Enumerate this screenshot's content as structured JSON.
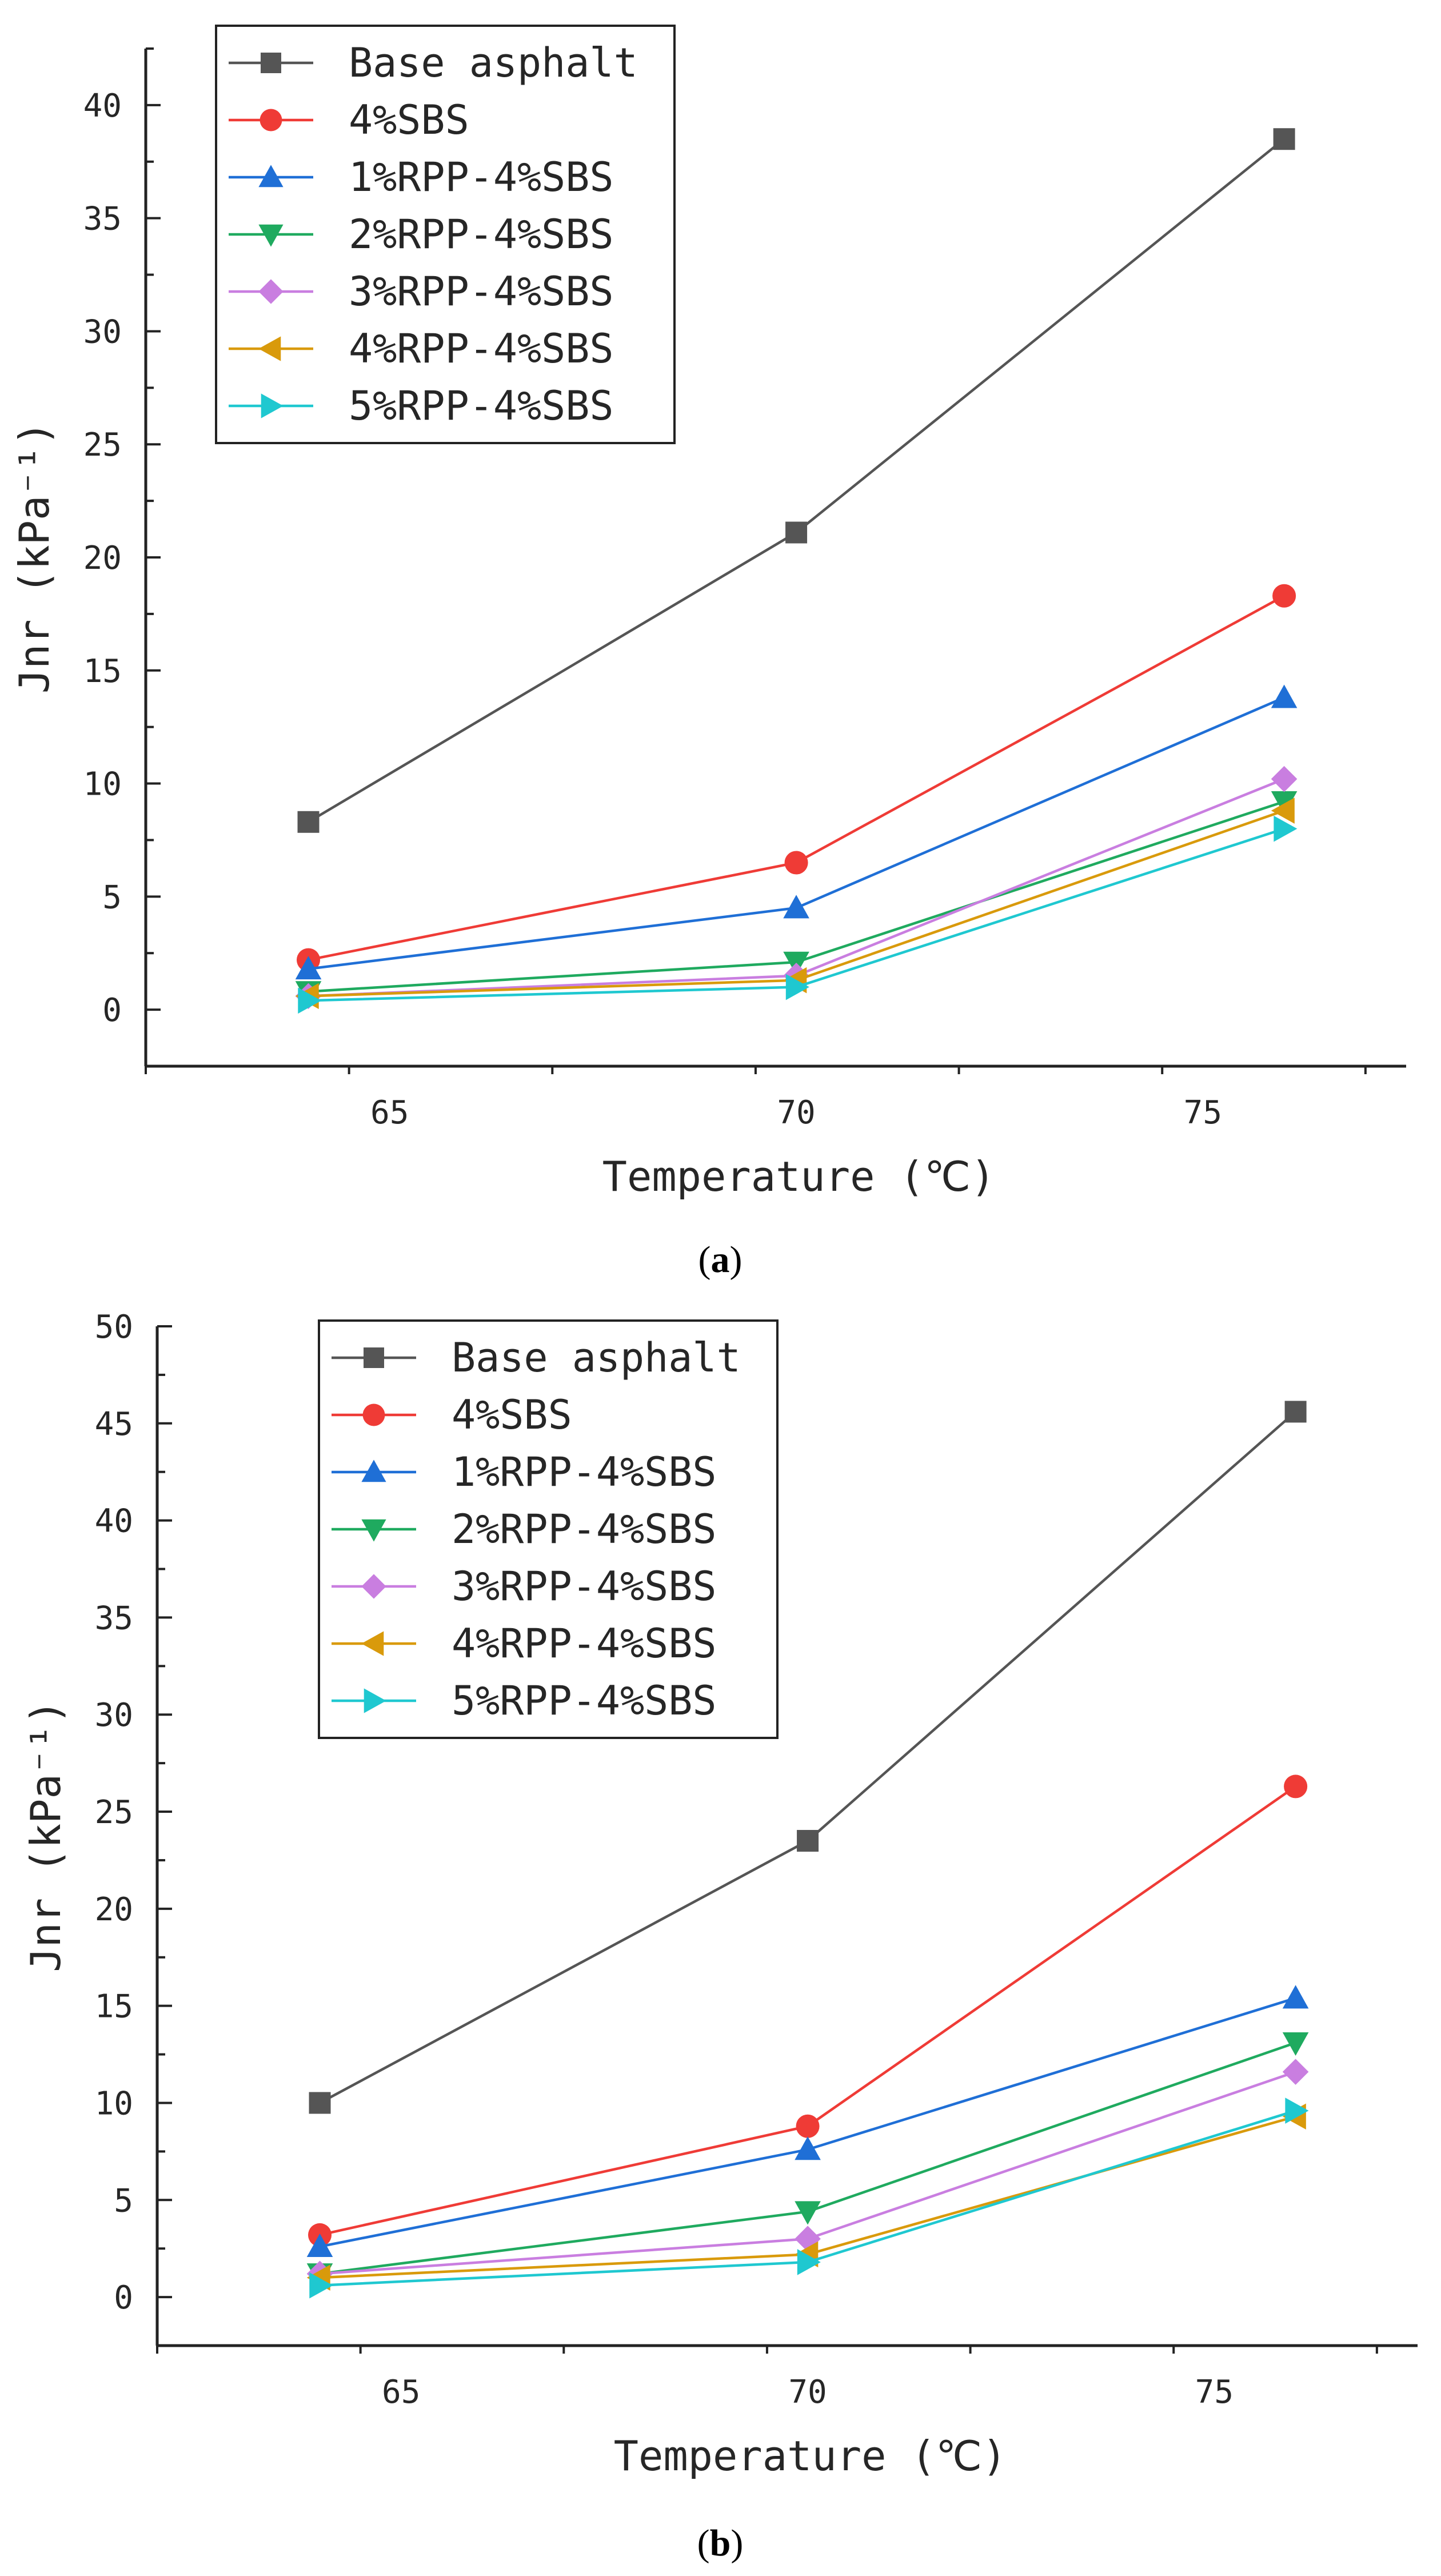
{
  "chart_data": [
    {
      "panel": "(a)",
      "type": "line",
      "xlabel": "Temperature (℃)",
      "ylabel": "Jnr (kPa⁻¹)",
      "x": [
        64,
        70,
        76
      ],
      "xlim": [
        62,
        77.5
      ],
      "ylim": [
        -2.5,
        42.5
      ],
      "xticks": [
        65,
        70,
        75
      ],
      "yticks": [
        0,
        5,
        10,
        15,
        20,
        25,
        30,
        35,
        40
      ],
      "legend_position": "top-left",
      "grid": false,
      "series": [
        {
          "name": "Base asphalt",
          "color": "#555555",
          "marker": "square",
          "values": [
            8.3,
            21.1,
            38.5
          ]
        },
        {
          "name": "4%SBS",
          "color": "#ef3b36",
          "marker": "circle",
          "values": [
            2.2,
            6.5,
            18.3
          ]
        },
        {
          "name": "1%RPP-4%SBS",
          "color": "#1f6fd6",
          "marker": "triangle-up",
          "values": [
            1.8,
            4.5,
            13.8
          ]
        },
        {
          "name": "2%RPP-4%SBS",
          "color": "#1faa5f",
          "marker": "triangle-down",
          "values": [
            0.8,
            2.1,
            9.2
          ]
        },
        {
          "name": "3%RPP-4%SBS",
          "color": "#c97ee0",
          "marker": "diamond",
          "values": [
            0.6,
            1.5,
            10.2
          ]
        },
        {
          "name": "4%RPP-4%SBS",
          "color": "#d99a0b",
          "marker": "triangle-left",
          "values": [
            0.6,
            1.3,
            8.8
          ]
        },
        {
          "name": "5%RPP-4%SBS",
          "color": "#1fc8d0",
          "marker": "triangle-right",
          "values": [
            0.4,
            1.0,
            8.0
          ]
        }
      ]
    },
    {
      "panel": "(b)",
      "type": "line",
      "xlabel": "Temperature (℃)",
      "ylabel": "Jnr (kPa⁻¹)",
      "x": [
        64,
        70,
        76
      ],
      "xlim": [
        62,
        77.5
      ],
      "ylim": [
        -2.5,
        50
      ],
      "xticks": [
        65,
        70,
        75
      ],
      "yticks": [
        0,
        5,
        10,
        15,
        20,
        25,
        30,
        35,
        40,
        45,
        50
      ],
      "legend_position": "top-left",
      "grid": false,
      "series": [
        {
          "name": "Base asphalt",
          "color": "#555555",
          "marker": "square",
          "values": [
            10.0,
            23.5,
            45.6
          ]
        },
        {
          "name": "4%SBS",
          "color": "#ef3b36",
          "marker": "circle",
          "values": [
            3.2,
            8.8,
            26.3
          ]
        },
        {
          "name": "1%RPP-4%SBS",
          "color": "#1f6fd6",
          "marker": "triangle-up",
          "values": [
            2.6,
            7.6,
            15.4
          ]
        },
        {
          "name": "2%RPP-4%SBS",
          "color": "#1faa5f",
          "marker": "triangle-down",
          "values": [
            1.2,
            4.4,
            13.1
          ]
        },
        {
          "name": "3%RPP-4%SBS",
          "color": "#c97ee0",
          "marker": "diamond",
          "values": [
            1.2,
            3.0,
            11.6
          ]
        },
        {
          "name": "4%RPP-4%SBS",
          "color": "#d99a0b",
          "marker": "triangle-left",
          "values": [
            1.0,
            2.2,
            9.3
          ]
        },
        {
          "name": "5%RPP-4%SBS",
          "color": "#1fc8d0",
          "marker": "triangle-right",
          "values": [
            0.6,
            1.8,
            9.6
          ]
        }
      ]
    }
  ],
  "captions": {
    "a_open": "(",
    "a_letter": "a",
    "a_close": ")",
    "b_open": "(",
    "b_letter": "b",
    "b_close": ")"
  }
}
